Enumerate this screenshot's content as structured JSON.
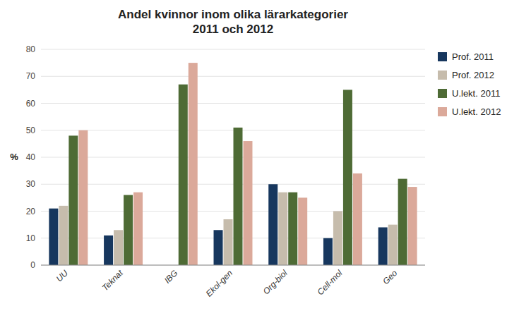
{
  "chart_data": {
    "type": "bar",
    "title": "Andel kvinnor inom olika lärarkategorier\n2011 och 2012",
    "categories": [
      "UU",
      "Teknat",
      "IBG",
      "Ekol-gen",
      "Org-biol",
      "Cell-mol",
      "Geo"
    ],
    "series": [
      {
        "name": "Prof. 2011",
        "color": "#17375E",
        "values": [
          21,
          11,
          0,
          13,
          30,
          10,
          14
        ]
      },
      {
        "name": "Prof. 2012",
        "color": "#C6BCAC",
        "values": [
          22,
          13,
          0,
          17,
          27,
          20,
          15
        ]
      },
      {
        "name": "U.lekt. 2011",
        "color": "#4E6B35",
        "values": [
          48,
          26,
          67,
          51,
          27,
          65,
          32
        ]
      },
      {
        "name": "U.lekt. 2012",
        "color": "#DBA99A",
        "values": [
          50,
          27,
          75,
          46,
          25,
          34,
          29
        ]
      }
    ],
    "y_label": "%",
    "ylim": [
      0,
      80
    ],
    "yticks": [
      0,
      10,
      20,
      30,
      40,
      50,
      60,
      70,
      80
    ],
    "grid": true,
    "legend": "right"
  }
}
